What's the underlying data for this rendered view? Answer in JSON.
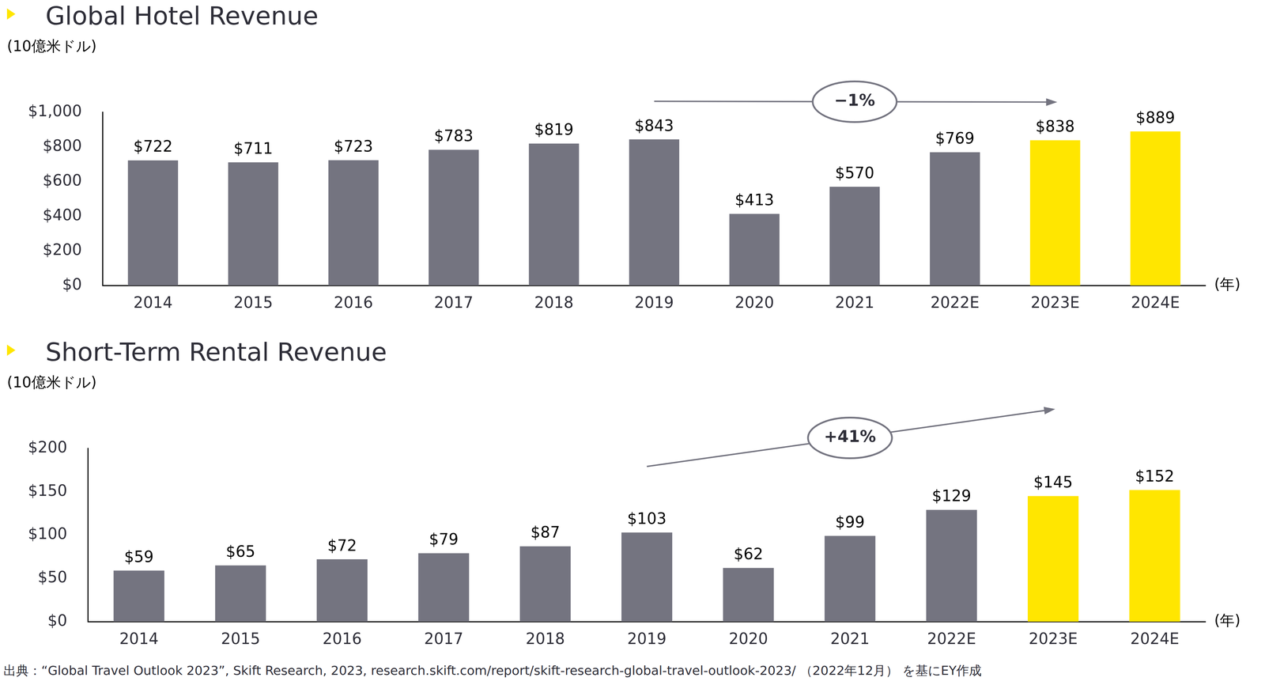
{
  "chart_data": [
    {
      "type": "bar",
      "title": "Global Hotel Revenue",
      "y_label": "(10億米ドル)",
      "x_label": "(年)",
      "categories": [
        "2014",
        "2015",
        "2016",
        "2017",
        "2018",
        "2019",
        "2020",
        "2021",
        "2022E",
        "2023E",
        "2024E"
      ],
      "values": [
        722,
        711,
        723,
        783,
        819,
        843,
        413,
        570,
        769,
        838,
        889
      ],
      "value_labels": [
        "$722",
        "$711",
        "$723",
        "$783",
        "$819",
        "$843",
        "$413",
        "$570",
        "$769",
        "$838",
        "$889"
      ],
      "colors": [
        "#747480",
        "#747480",
        "#747480",
        "#747480",
        "#747480",
        "#747480",
        "#747480",
        "#747480",
        "#747480",
        "#ffe600",
        "#ffe600"
      ],
      "ylim": [
        0,
        1000
      ],
      "yticks": [
        {
          "value": 0,
          "label": "$0"
        },
        {
          "value": 200,
          "label": "$200"
        },
        {
          "value": 400,
          "label": "$400"
        },
        {
          "value": 600,
          "label": "$600"
        },
        {
          "value": 800,
          "label": "$800"
        },
        {
          "value": 1000,
          "label": "$1,000"
        }
      ],
      "grid": false,
      "data_labels": true,
      "annotations": [
        {
          "text": "−1%",
          "from": "2019",
          "to": "2023E"
        }
      ]
    },
    {
      "type": "bar",
      "title": "Short-Term Rental Revenue",
      "y_label": "(10億米ドル)",
      "x_label": "(年)",
      "categories": [
        "2014",
        "2015",
        "2016",
        "2017",
        "2018",
        "2019",
        "2020",
        "2021",
        "2022E",
        "2023E",
        "2024E"
      ],
      "values": [
        59,
        65,
        72,
        79,
        87,
        103,
        62,
        99,
        129,
        145,
        152
      ],
      "value_labels": [
        "$59",
        "$65",
        "$72",
        "$79",
        "$87",
        "$103",
        "$62",
        "$99",
        "$129",
        "$145",
        "$152"
      ],
      "colors": [
        "#747480",
        "#747480",
        "#747480",
        "#747480",
        "#747480",
        "#747480",
        "#747480",
        "#747480",
        "#747480",
        "#ffe600",
        "#ffe600"
      ],
      "ylim": [
        0,
        200
      ],
      "yticks": [
        {
          "value": 0,
          "label": "$0"
        },
        {
          "value": 50,
          "label": "$50"
        },
        {
          "value": 100,
          "label": "$100"
        },
        {
          "value": 150,
          "label": "$150"
        },
        {
          "value": 200,
          "label": "$200"
        }
      ],
      "grid": false,
      "data_labels": true,
      "annotations": [
        {
          "text": "+41%",
          "from": "2019",
          "to": "2023E"
        }
      ]
    }
  ],
  "source": "出典：“Global Travel Outlook 2023”, Skift Research, 2023, research.skift.com/report/skift-research-global-travel-outlook-2023/ （2022年12月） を基にEY作成"
}
